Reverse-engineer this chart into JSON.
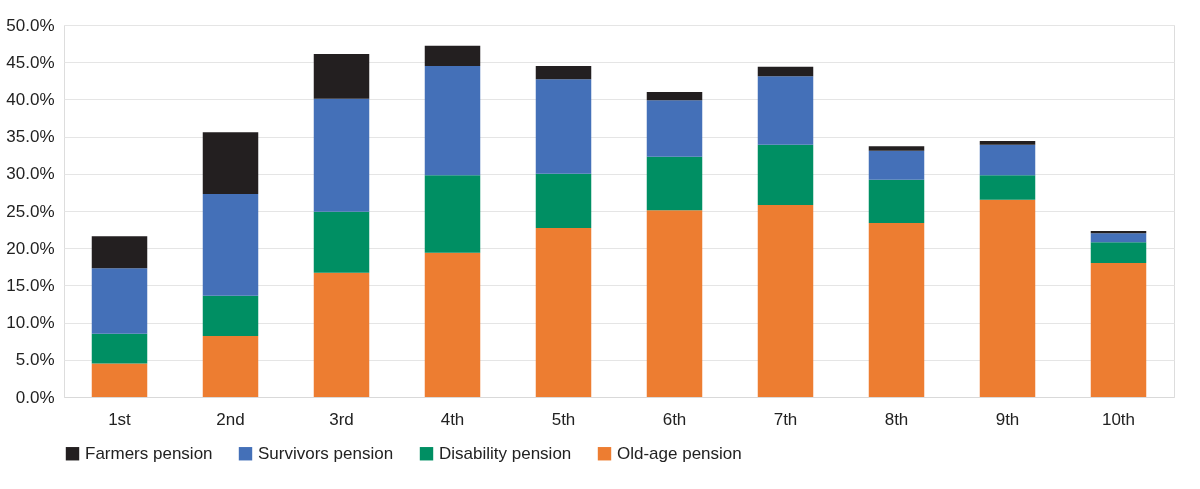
{
  "chart_data": {
    "type": "bar",
    "stacked": true,
    "categories": [
      "1st",
      "2nd",
      "3rd",
      "4th",
      "5th",
      "6th",
      "7th",
      "8th",
      "9th",
      "10th"
    ],
    "series": [
      {
        "name": "Old-age pension",
        "color": "#ed7d31",
        "values": [
          4.5,
          8.2,
          16.7,
          19.4,
          22.7,
          25.1,
          25.8,
          23.4,
          26.5,
          18.0
        ]
      },
      {
        "name": "Disability pension",
        "color": "#008f63",
        "values": [
          4.0,
          5.4,
          8.2,
          10.4,
          7.3,
          7.2,
          8.1,
          5.8,
          3.3,
          2.8
        ]
      },
      {
        "name": "Survivors pension",
        "color": "#4470b8",
        "values": [
          8.8,
          13.7,
          15.2,
          14.7,
          12.7,
          7.6,
          9.2,
          3.9,
          4.1,
          1.2
        ]
      },
      {
        "name": "Farmers pension",
        "color": "#231f20",
        "values": [
          4.3,
          8.3,
          6.0,
          2.7,
          1.8,
          1.1,
          1.3,
          0.6,
          0.5,
          0.3
        ]
      }
    ],
    "ylim": [
      0,
      50
    ],
    "yticks": [
      {
        "value": 0,
        "label": "0.0%"
      },
      {
        "value": 5,
        "label": "5.0%"
      },
      {
        "value": 10,
        "label": "10.0%"
      },
      {
        "value": 15,
        "label": "15.0%"
      },
      {
        "value": 20,
        "label": "20.0%"
      },
      {
        "value": 25,
        "label": "25.0%"
      },
      {
        "value": 30,
        "label": "30.0%"
      },
      {
        "value": 35,
        "label": "35.0%"
      },
      {
        "value": 40,
        "label": "40.0%"
      },
      {
        "value": 45,
        "label": "45.0%"
      },
      {
        "value": 50,
        "label": "50.0%"
      }
    ],
    "grid": "y",
    "legend": "bottom"
  }
}
